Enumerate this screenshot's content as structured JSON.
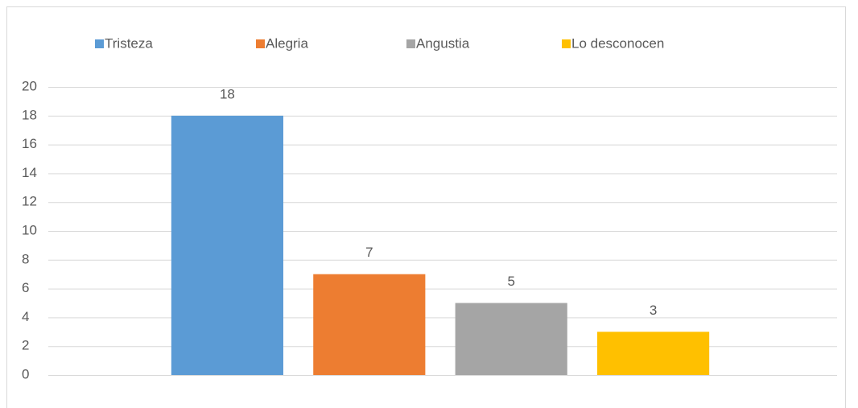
{
  "chart_data": {
    "type": "bar",
    "categories": [
      null
    ],
    "series": [
      {
        "name": "Tristeza",
        "color": "#5b9bd5",
        "values": [
          18
        ]
      },
      {
        "name": "Alegria",
        "color": "#ed7d31",
        "values": [
          7
        ]
      },
      {
        "name": "Angustia",
        "color": "#a5a5a5",
        "values": [
          5
        ]
      },
      {
        "name": "Lo desconocen",
        "color": "#ffc000",
        "values": [
          3
        ]
      }
    ],
    "ylim": [
      0,
      20
    ],
    "yticks": [
      0,
      2,
      4,
      6,
      8,
      10,
      12,
      14,
      16,
      18,
      20
    ],
    "grid": true,
    "legend": "top",
    "data_labels": true
  }
}
